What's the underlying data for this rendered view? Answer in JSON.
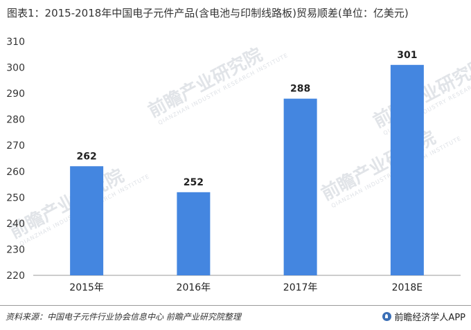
{
  "title": "图表1：2015-2018年中国电子元件产品(含电池与印制线路板)贸易顺差(单位：亿美元)",
  "watermark": {
    "text": "前瞻产业研究院",
    "subtext": "QIANZHAN INDUSTRY RESEARCH INSTITUTE"
  },
  "footer": {
    "source": "资料来源：中国电子元件行业协会信息中心 前瞻产业研究院整理",
    "brand": "前瞻经济学人APP"
  },
  "colors": {
    "bar": "#4486e0",
    "axis": "#9a9a9a"
  },
  "chart_data": {
    "type": "bar",
    "title": "图表1：2015-2018年中国电子元件产品(含电池与印制线路板)贸易顺差(单位：亿美元)",
    "categories": [
      "2015年",
      "2016年",
      "2017年",
      "2018E"
    ],
    "values": [
      262,
      252,
      288,
      301
    ],
    "data_labels": [
      "262",
      "252",
      "288",
      "301"
    ],
    "ylim": [
      220,
      310
    ],
    "yticks": [
      "220",
      "230",
      "240",
      "250",
      "260",
      "270",
      "280",
      "290",
      "300",
      "310"
    ],
    "xlabel": "",
    "ylabel": "",
    "grid": false,
    "legend": "none"
  }
}
